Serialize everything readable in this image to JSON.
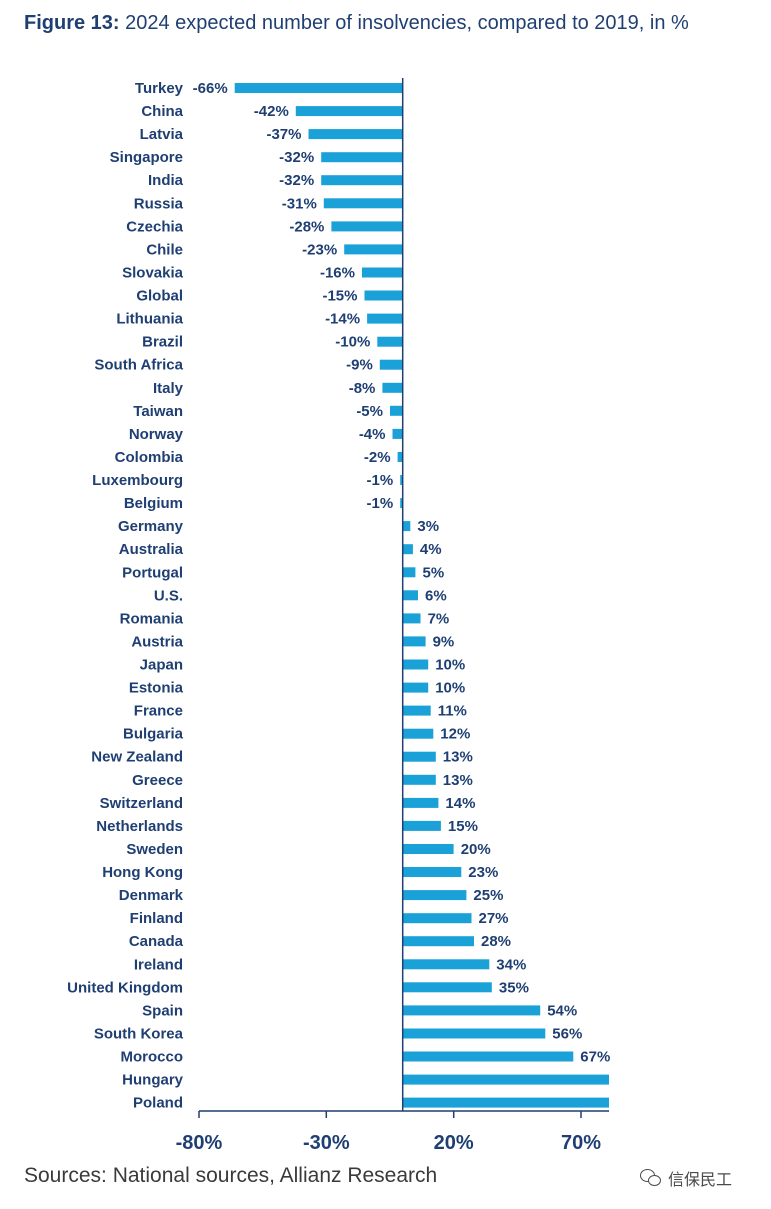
{
  "title": {
    "prefix": "Figure 13:",
    "text": " 2024 expected number of insolvencies, compared to 2019, in %"
  },
  "source": "Sources: National sources, Allianz Research",
  "watermark": "信保民工",
  "colors": {
    "bar": "#1aa1d8",
    "text": "#1f3f73",
    "axis": "#1f3f73"
  },
  "chart_data": {
    "type": "bar",
    "orientation": "horizontal",
    "categories": [
      "Turkey",
      "China",
      "Latvia",
      "Singapore",
      "India",
      "Russia",
      "Czechia",
      "Chile",
      "Slovakia",
      "Global",
      "Lithuania",
      "Brazil",
      "South Africa",
      "Italy",
      "Taiwan",
      "Norway",
      "Colombia",
      "Luxembourg",
      "Belgium",
      "Germany",
      "Australia",
      "Portugal",
      "U.S.",
      "Romania",
      "Austria",
      "Japan",
      "Estonia",
      "France",
      "Bulgaria",
      "New Zealand",
      "Greece",
      "Switzerland",
      "Netherlands",
      "Sweden",
      "Hong Kong",
      "Denmark",
      "Finland",
      "Canada",
      "Ireland",
      "United Kingdom",
      "Spain",
      "South Korea",
      "Morocco",
      "Hungary",
      "Poland"
    ],
    "values": [
      -66,
      -42,
      -37,
      -32,
      -32,
      -31,
      -28,
      -23,
      -16,
      -15,
      -14,
      -10,
      -9,
      -8,
      -5,
      -4,
      -2,
      -1,
      -1,
      3,
      4,
      5,
      6,
      7,
      9,
      10,
      10,
      11,
      12,
      13,
      13,
      14,
      15,
      20,
      23,
      25,
      27,
      28,
      34,
      35,
      54,
      56,
      67,
      null,
      null
    ],
    "value_labels": [
      "-66%",
      "-42%",
      "-37%",
      "-32%",
      "-32%",
      "-31%",
      "-28%",
      "-23%",
      "-16%",
      "-15%",
      "-14%",
      "-10%",
      "-9%",
      "-8%",
      "-5%",
      "-4%",
      "-2%",
      "-1%",
      "-1%",
      "3%",
      "4%",
      "5%",
      "6%",
      "7%",
      "9%",
      "10%",
      "10%",
      "11%",
      "12%",
      "13%",
      "13%",
      "14%",
      "15%",
      "20%",
      "23%",
      "25%",
      "27%",
      "28%",
      "34%",
      "35%",
      "54%",
      "56%",
      "67%",
      "",
      ""
    ],
    "truncated_categories": [
      "Hungary",
      "Poland"
    ],
    "xticks": [
      -80,
      -30,
      20,
      70
    ],
    "xtick_labels": [
      "-80%",
      "-30%",
      "20%",
      "70%"
    ],
    "xlim": [
      -80,
      81
    ],
    "title": "2024 expected number of insolvencies, compared to 2019, in %",
    "xlabel": "",
    "ylabel": "",
    "grid": false,
    "legend": "none"
  }
}
